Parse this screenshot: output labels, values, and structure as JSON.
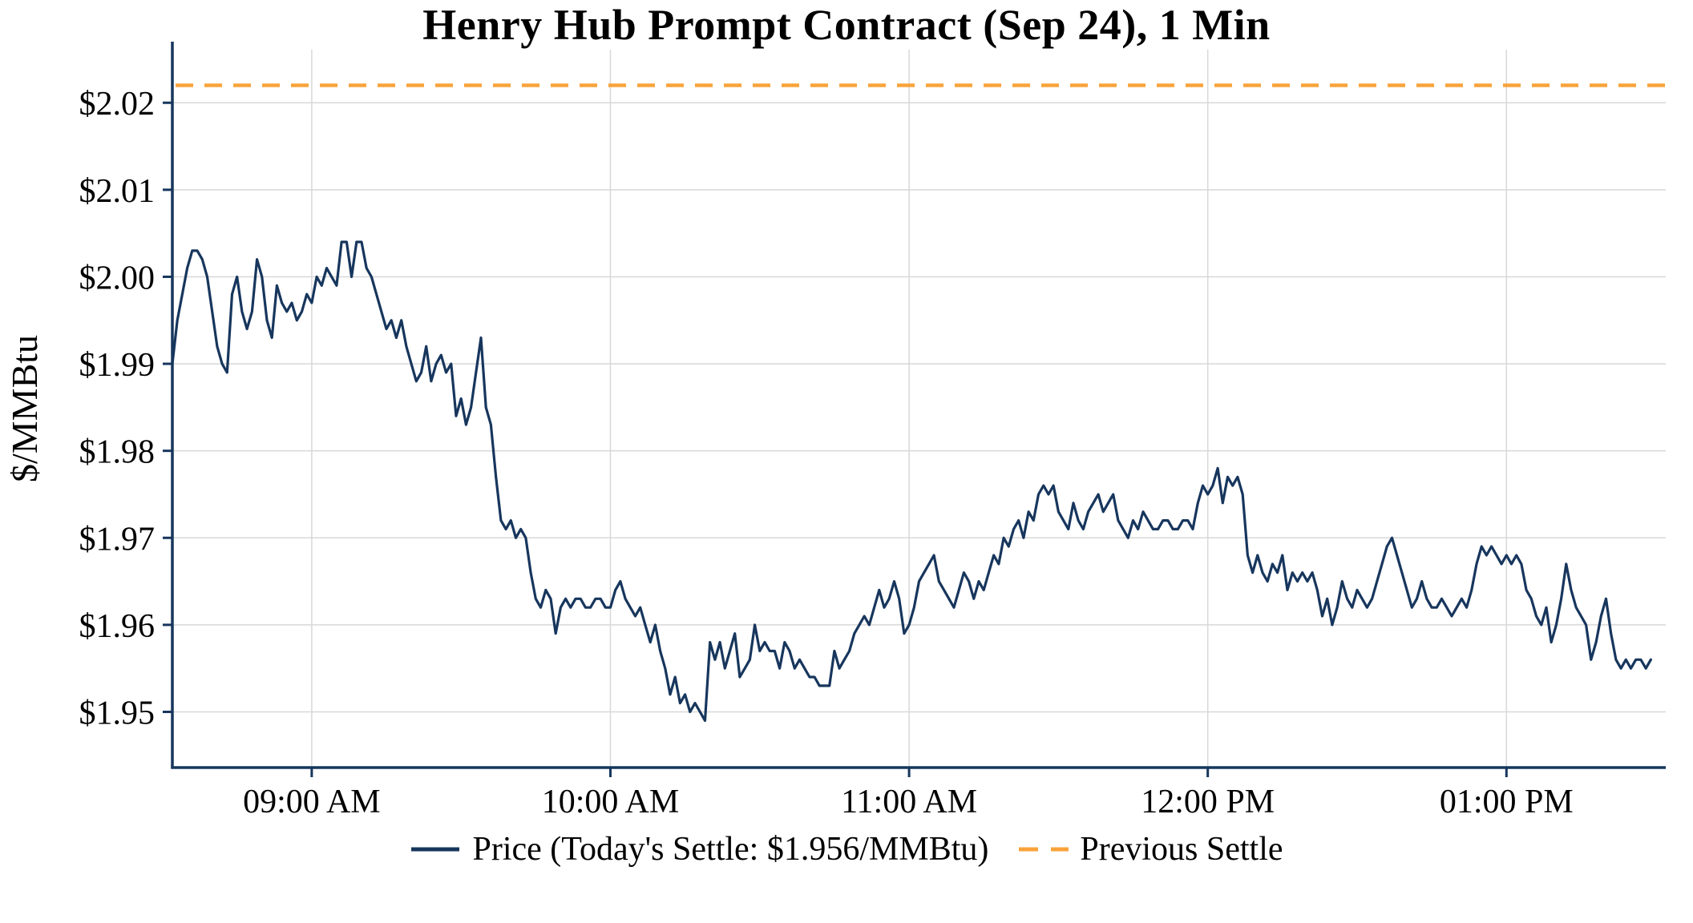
{
  "colors": {
    "axis": "#17365d",
    "grid": "#d8d8d8",
    "price_line": "#17365d",
    "settle_line": "#f9a33b",
    "text": "#000000",
    "background": "#ffffff"
  },
  "chart_data": {
    "type": "line",
    "title": "Henry Hub Prompt Contract (Sep 24), 1 Min",
    "xlabel": "",
    "ylabel": "$/MMBtu",
    "grid": true,
    "legend_position": "bottom",
    "ylim": [
      1.9436,
      2.0261
    ],
    "xlim_minutes": [
      512,
      812
    ],
    "y_ticks": [
      1.95,
      1.96,
      1.97,
      1.98,
      1.99,
      2.0,
      2.01,
      2.02
    ],
    "y_tick_labels": [
      "$1.95",
      "$1.96",
      "$1.97",
      "$1.98",
      "$1.99",
      "$2.00",
      "$2.01",
      "$2.02"
    ],
    "x_ticks_minutes": [
      540,
      600,
      660,
      720,
      780
    ],
    "x_tick_labels": [
      "09:00 AM",
      "10:00 AM",
      "11:00 AM",
      "12:00 PM",
      "01:00 PM"
    ],
    "previous_settle": 2.022,
    "todays_settle": 1.956,
    "series": [
      {
        "name": "Price (Today's Settle: $1.956/MMBtu)",
        "color": "#17365d",
        "style": "solid",
        "points": [
          [
            512,
            1.99
          ],
          [
            513,
            1.995
          ],
          [
            514,
            1.998
          ],
          [
            515,
            2.001
          ],
          [
            516,
            2.003
          ],
          [
            517,
            2.003
          ],
          [
            518,
            2.002
          ],
          [
            519,
            2.0
          ],
          [
            520,
            1.996
          ],
          [
            521,
            1.992
          ],
          [
            522,
            1.99
          ],
          [
            523,
            1.989
          ],
          [
            524,
            1.998
          ],
          [
            525,
            2.0
          ],
          [
            526,
            1.996
          ],
          [
            527,
            1.994
          ],
          [
            528,
            1.996
          ],
          [
            529,
            2.002
          ],
          [
            530,
            2.0
          ],
          [
            531,
            1.995
          ],
          [
            532,
            1.993
          ],
          [
            533,
            1.999
          ],
          [
            534,
            1.997
          ],
          [
            535,
            1.996
          ],
          [
            536,
            1.997
          ],
          [
            537,
            1.995
          ],
          [
            538,
            1.996
          ],
          [
            539,
            1.998
          ],
          [
            540,
            1.997
          ],
          [
            541,
            2.0
          ],
          [
            542,
            1.999
          ],
          [
            543,
            2.001
          ],
          [
            544,
            2.0
          ],
          [
            545,
            1.999
          ],
          [
            546,
            2.004
          ],
          [
            547,
            2.004
          ],
          [
            548,
            2.0
          ],
          [
            549,
            2.004
          ],
          [
            550,
            2.004
          ],
          [
            551,
            2.001
          ],
          [
            552,
            2.0
          ],
          [
            553,
            1.998
          ],
          [
            554,
            1.996
          ],
          [
            555,
            1.994
          ],
          [
            556,
            1.995
          ],
          [
            557,
            1.993
          ],
          [
            558,
            1.995
          ],
          [
            559,
            1.992
          ],
          [
            560,
            1.99
          ],
          [
            561,
            1.988
          ],
          [
            562,
            1.989
          ],
          [
            563,
            1.992
          ],
          [
            564,
            1.988
          ],
          [
            565,
            1.99
          ],
          [
            566,
            1.991
          ],
          [
            567,
            1.989
          ],
          [
            568,
            1.99
          ],
          [
            569,
            1.984
          ],
          [
            570,
            1.986
          ],
          [
            571,
            1.983
          ],
          [
            572,
            1.985
          ],
          [
            573,
            1.989
          ],
          [
            574,
            1.993
          ],
          [
            575,
            1.985
          ],
          [
            576,
            1.983
          ],
          [
            577,
            1.977
          ],
          [
            578,
            1.972
          ],
          [
            579,
            1.971
          ],
          [
            580,
            1.972
          ],
          [
            581,
            1.97
          ],
          [
            582,
            1.971
          ],
          [
            583,
            1.97
          ],
          [
            584,
            1.966
          ],
          [
            585,
            1.963
          ],
          [
            586,
            1.962
          ],
          [
            587,
            1.964
          ],
          [
            588,
            1.963
          ],
          [
            589,
            1.959
          ],
          [
            590,
            1.962
          ],
          [
            591,
            1.963
          ],
          [
            592,
            1.962
          ],
          [
            593,
            1.963
          ],
          [
            594,
            1.963
          ],
          [
            595,
            1.962
          ],
          [
            596,
            1.962
          ],
          [
            597,
            1.963
          ],
          [
            598,
            1.963
          ],
          [
            599,
            1.962
          ],
          [
            600,
            1.962
          ],
          [
            601,
            1.964
          ],
          [
            602,
            1.965
          ],
          [
            603,
            1.963
          ],
          [
            604,
            1.962
          ],
          [
            605,
            1.961
          ],
          [
            606,
            1.962
          ],
          [
            607,
            1.96
          ],
          [
            608,
            1.958
          ],
          [
            609,
            1.96
          ],
          [
            610,
            1.957
          ],
          [
            611,
            1.955
          ],
          [
            612,
            1.952
          ],
          [
            613,
            1.954
          ],
          [
            614,
            1.951
          ],
          [
            615,
            1.952
          ],
          [
            616,
            1.95
          ],
          [
            617,
            1.951
          ],
          [
            618,
            1.95
          ],
          [
            619,
            1.949
          ],
          [
            620,
            1.958
          ],
          [
            621,
            1.956
          ],
          [
            622,
            1.958
          ],
          [
            623,
            1.955
          ],
          [
            624,
            1.957
          ],
          [
            625,
            1.959
          ],
          [
            626,
            1.954
          ],
          [
            627,
            1.955
          ],
          [
            628,
            1.956
          ],
          [
            629,
            1.96
          ],
          [
            630,
            1.957
          ],
          [
            631,
            1.958
          ],
          [
            632,
            1.957
          ],
          [
            633,
            1.957
          ],
          [
            634,
            1.955
          ],
          [
            635,
            1.958
          ],
          [
            636,
            1.957
          ],
          [
            637,
            1.955
          ],
          [
            638,
            1.956
          ],
          [
            639,
            1.955
          ],
          [
            640,
            1.954
          ],
          [
            641,
            1.954
          ],
          [
            642,
            1.953
          ],
          [
            643,
            1.953
          ],
          [
            644,
            1.953
          ],
          [
            645,
            1.957
          ],
          [
            646,
            1.955
          ],
          [
            647,
            1.956
          ],
          [
            648,
            1.957
          ],
          [
            649,
            1.959
          ],
          [
            650,
            1.96
          ],
          [
            651,
            1.961
          ],
          [
            652,
            1.96
          ],
          [
            653,
            1.962
          ],
          [
            654,
            1.964
          ],
          [
            655,
            1.962
          ],
          [
            656,
            1.963
          ],
          [
            657,
            1.965
          ],
          [
            658,
            1.963
          ],
          [
            659,
            1.959
          ],
          [
            660,
            1.96
          ],
          [
            661,
            1.962
          ],
          [
            662,
            1.965
          ],
          [
            663,
            1.966
          ],
          [
            664,
            1.967
          ],
          [
            665,
            1.968
          ],
          [
            666,
            1.965
          ],
          [
            667,
            1.964
          ],
          [
            668,
            1.963
          ],
          [
            669,
            1.962
          ],
          [
            670,
            1.964
          ],
          [
            671,
            1.966
          ],
          [
            672,
            1.965
          ],
          [
            673,
            1.963
          ],
          [
            674,
            1.965
          ],
          [
            675,
            1.964
          ],
          [
            676,
            1.966
          ],
          [
            677,
            1.968
          ],
          [
            678,
            1.967
          ],
          [
            679,
            1.97
          ],
          [
            680,
            1.969
          ],
          [
            681,
            1.971
          ],
          [
            682,
            1.972
          ],
          [
            683,
            1.97
          ],
          [
            684,
            1.973
          ],
          [
            685,
            1.972
          ],
          [
            686,
            1.975
          ],
          [
            687,
            1.976
          ],
          [
            688,
            1.975
          ],
          [
            689,
            1.976
          ],
          [
            690,
            1.973
          ],
          [
            691,
            1.972
          ],
          [
            692,
            1.971
          ],
          [
            693,
            1.974
          ],
          [
            694,
            1.972
          ],
          [
            695,
            1.971
          ],
          [
            696,
            1.973
          ],
          [
            697,
            1.974
          ],
          [
            698,
            1.975
          ],
          [
            699,
            1.973
          ],
          [
            700,
            1.974
          ],
          [
            701,
            1.975
          ],
          [
            702,
            1.972
          ],
          [
            703,
            1.971
          ],
          [
            704,
            1.97
          ],
          [
            705,
            1.972
          ],
          [
            706,
            1.971
          ],
          [
            707,
            1.973
          ],
          [
            708,
            1.972
          ],
          [
            709,
            1.971
          ],
          [
            710,
            1.971
          ],
          [
            711,
            1.972
          ],
          [
            712,
            1.972
          ],
          [
            713,
            1.971
          ],
          [
            714,
            1.971
          ],
          [
            715,
            1.972
          ],
          [
            716,
            1.972
          ],
          [
            717,
            1.971
          ],
          [
            718,
            1.974
          ],
          [
            719,
            1.976
          ],
          [
            720,
            1.975
          ],
          [
            721,
            1.976
          ],
          [
            722,
            1.978
          ],
          [
            723,
            1.974
          ],
          [
            724,
            1.977
          ],
          [
            725,
            1.976
          ],
          [
            726,
            1.977
          ],
          [
            727,
            1.975
          ],
          [
            728,
            1.968
          ],
          [
            729,
            1.966
          ],
          [
            730,
            1.968
          ],
          [
            731,
            1.966
          ],
          [
            732,
            1.965
          ],
          [
            733,
            1.967
          ],
          [
            734,
            1.966
          ],
          [
            735,
            1.968
          ],
          [
            736,
            1.964
          ],
          [
            737,
            1.966
          ],
          [
            738,
            1.965
          ],
          [
            739,
            1.966
          ],
          [
            740,
            1.965
          ],
          [
            741,
            1.966
          ],
          [
            742,
            1.964
          ],
          [
            743,
            1.961
          ],
          [
            744,
            1.963
          ],
          [
            745,
            1.96
          ],
          [
            746,
            1.962
          ],
          [
            747,
            1.965
          ],
          [
            748,
            1.963
          ],
          [
            749,
            1.962
          ],
          [
            750,
            1.964
          ],
          [
            751,
            1.963
          ],
          [
            752,
            1.962
          ],
          [
            753,
            1.963
          ],
          [
            754,
            1.965
          ],
          [
            755,
            1.967
          ],
          [
            756,
            1.969
          ],
          [
            757,
            1.97
          ],
          [
            758,
            1.968
          ],
          [
            759,
            1.966
          ],
          [
            760,
            1.964
          ],
          [
            761,
            1.962
          ],
          [
            762,
            1.963
          ],
          [
            763,
            1.965
          ],
          [
            764,
            1.963
          ],
          [
            765,
            1.962
          ],
          [
            766,
            1.962
          ],
          [
            767,
            1.963
          ],
          [
            768,
            1.962
          ],
          [
            769,
            1.961
          ],
          [
            770,
            1.962
          ],
          [
            771,
            1.963
          ],
          [
            772,
            1.962
          ],
          [
            773,
            1.964
          ],
          [
            774,
            1.967
          ],
          [
            775,
            1.969
          ],
          [
            776,
            1.968
          ],
          [
            777,
            1.969
          ],
          [
            778,
            1.968
          ],
          [
            779,
            1.967
          ],
          [
            780,
            1.968
          ],
          [
            781,
            1.967
          ],
          [
            782,
            1.968
          ],
          [
            783,
            1.967
          ],
          [
            784,
            1.964
          ],
          [
            785,
            1.963
          ],
          [
            786,
            1.961
          ],
          [
            787,
            1.96
          ],
          [
            788,
            1.962
          ],
          [
            789,
            1.958
          ],
          [
            790,
            1.96
          ],
          [
            791,
            1.963
          ],
          [
            792,
            1.967
          ],
          [
            793,
            1.964
          ],
          [
            794,
            1.962
          ],
          [
            795,
            1.961
          ],
          [
            796,
            1.96
          ],
          [
            797,
            1.956
          ],
          [
            798,
            1.958
          ],
          [
            799,
            1.961
          ],
          [
            800,
            1.963
          ],
          [
            801,
            1.959
          ],
          [
            802,
            1.956
          ],
          [
            803,
            1.955
          ],
          [
            804,
            1.956
          ],
          [
            805,
            1.955
          ],
          [
            806,
            1.956
          ],
          [
            807,
            1.956
          ],
          [
            808,
            1.955
          ],
          [
            809,
            1.956
          ]
        ]
      },
      {
        "name": "Previous Settle",
        "color": "#f9a33b",
        "style": "dashed",
        "value": 2.022
      }
    ]
  }
}
